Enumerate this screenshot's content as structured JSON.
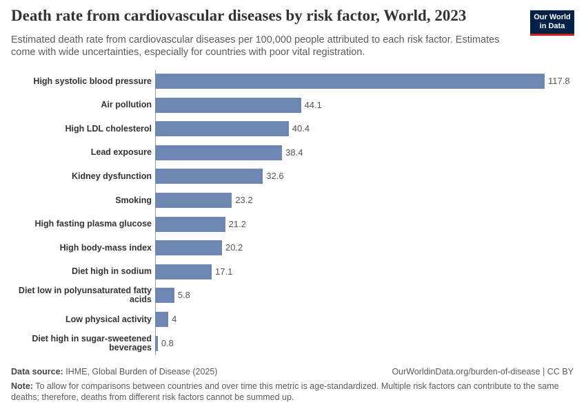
{
  "chart_data": {
    "type": "bar",
    "orientation": "horizontal",
    "title": "Death rate from cardiovascular diseases by risk factor, World, 2023",
    "subtitle": "Estimated death rate from cardiovascular diseases per 100,000 people attributed to each risk factor. Estimates come with wide uncertainties, especially for countries with poor vital registration.",
    "logo": [
      "Our World",
      "in Data"
    ],
    "categories": [
      "High systolic blood pressure",
      "Air pollution",
      "High LDL cholesterol",
      "Lead exposure",
      "Kidney dysfunction",
      "Smoking",
      "High fasting plasma glucose",
      "High body-mass index",
      "Diet high in sodium",
      "Diet low in polyunsaturated fatty acids",
      "Low physical activity",
      "Diet high in sugar-sweetened beverages"
    ],
    "values": [
      117.8,
      44.1,
      40.4,
      38.4,
      32.6,
      23.2,
      21.2,
      20.2,
      17.1,
      5.8,
      4,
      0.8
    ],
    "color": "#6d87b2",
    "source_label": "Data source:",
    "source": "IHME, Global Burden of Disease (2025)",
    "url": "OurWorldinData.org/burden-of-disease | CC BY",
    "note_label": "Note:",
    "note": "To allow for comparisons between countries and over time this metric is age-standardized. Multiple risk factors can contribute to the same deaths; therefore, deaths from different risk factors cannot be summed up."
  }
}
